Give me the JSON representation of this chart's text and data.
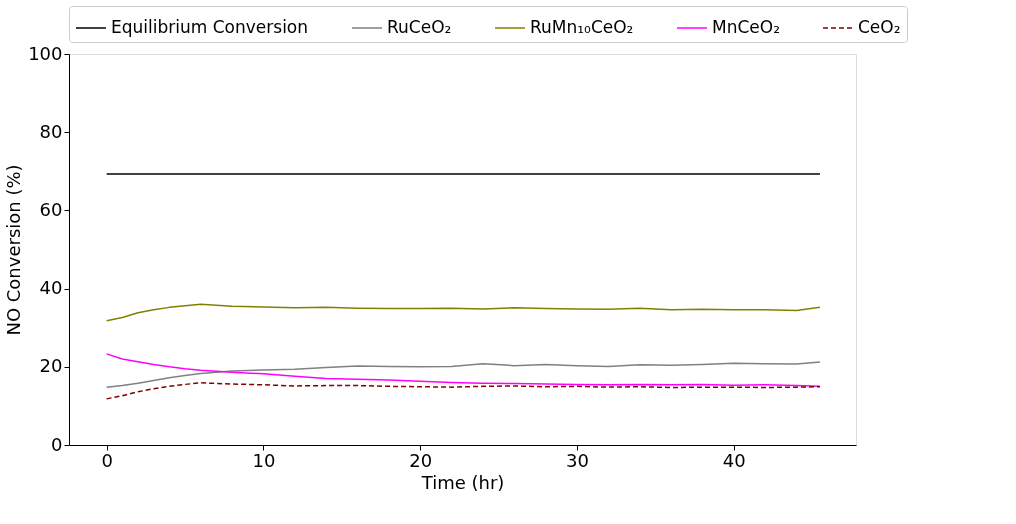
{
  "chart_data": {
    "type": "line",
    "xlabel": "Time (hr)",
    "ylabel": "NO Conversion (%)",
    "xlim": [
      -2.4,
      47.8
    ],
    "xticks": [
      0,
      10,
      20,
      30,
      40
    ],
    "ylim": [
      0,
      100
    ],
    "yticks": [
      0,
      20,
      40,
      60,
      80,
      100
    ],
    "grid": false,
    "legend": "top",
    "marker": "none",
    "series": [
      {
        "name": "Equilibrium Conversion",
        "color": "#000000",
        "line_style": "solid",
        "x": [
          0,
          45.5
        ],
        "values": [
          69.3,
          69.3
        ]
      },
      {
        "name": "RuCeO₂",
        "color": "#808080",
        "line_style": "solid",
        "x": [
          0,
          1,
          2,
          3,
          4,
          5,
          6,
          8,
          10,
          12,
          14,
          16,
          18,
          20,
          22,
          24,
          26,
          28,
          30,
          32,
          34,
          36,
          38,
          40,
          42,
          44,
          45.5
        ],
        "values": [
          14.8,
          15.2,
          15.8,
          16.5,
          17.2,
          17.8,
          18.3,
          18.9,
          19.2,
          19.4,
          19.8,
          20.2,
          20.1,
          20.0,
          20.1,
          20.8,
          20.3,
          20.6,
          20.3,
          20.1,
          20.5,
          20.4,
          20.6,
          20.9,
          20.8,
          20.7,
          21.2
        ]
      },
      {
        "name": "RuMn₁₀CeO₂",
        "color": "#808000",
        "line_style": "solid",
        "x": [
          0,
          1,
          2,
          3,
          4,
          5,
          6,
          8,
          10,
          12,
          14,
          16,
          18,
          20,
          22,
          24,
          26,
          28,
          30,
          32,
          34,
          36,
          38,
          40,
          42,
          44,
          45.5
        ],
        "values": [
          31.8,
          32.6,
          33.8,
          34.6,
          35.2,
          35.6,
          36.0,
          35.5,
          35.3,
          35.1,
          35.2,
          35.0,
          34.9,
          34.9,
          35.0,
          34.8,
          35.1,
          34.9,
          34.8,
          34.7,
          35.0,
          34.6,
          34.7,
          34.6,
          34.6,
          34.4,
          35.2
        ]
      },
      {
        "name": "MnCeO₂",
        "color": "#ff00ff",
        "line_style": "solid",
        "x": [
          0,
          1,
          2,
          3,
          4,
          5,
          6,
          8,
          10,
          12,
          14,
          16,
          18,
          20,
          22,
          24,
          26,
          28,
          30,
          32,
          34,
          36,
          38,
          40,
          42,
          44,
          45.5
        ],
        "values": [
          23.3,
          22.0,
          21.3,
          20.6,
          20.0,
          19.5,
          19.1,
          18.6,
          18.2,
          17.6,
          17.0,
          16.8,
          16.6,
          16.3,
          16.0,
          15.8,
          15.7,
          15.6,
          15.5,
          15.4,
          15.5,
          15.4,
          15.5,
          15.3,
          15.4,
          15.2,
          15.0
        ]
      },
      {
        "name": "CeO₂",
        "color": "#800000",
        "line_style": "dashed",
        "x": [
          0,
          1,
          2,
          3,
          4,
          5,
          6,
          8,
          10,
          12,
          14,
          16,
          18,
          20,
          22,
          24,
          26,
          28,
          30,
          32,
          34,
          36,
          38,
          40,
          42,
          44,
          45.5
        ],
        "values": [
          11.8,
          12.6,
          13.6,
          14.4,
          15.0,
          15.5,
          15.9,
          15.6,
          15.4,
          15.1,
          15.2,
          15.2,
          15.0,
          14.9,
          14.8,
          15.0,
          15.1,
          14.9,
          15.0,
          14.8,
          14.9,
          14.7,
          14.8,
          14.8,
          14.7,
          14.8,
          14.9
        ]
      }
    ]
  }
}
